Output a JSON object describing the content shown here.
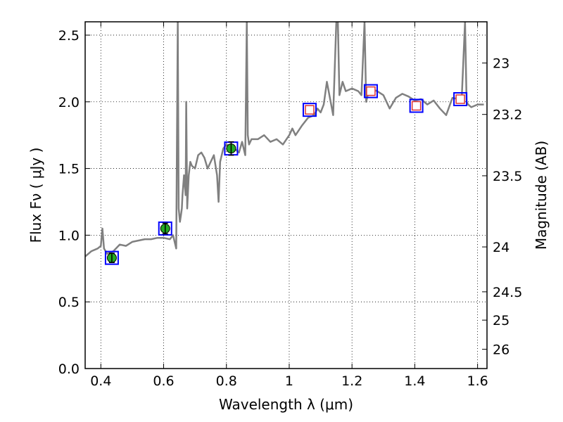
{
  "chart_data": {
    "type": "line",
    "xlabel": "Wavelength  λ (μm)",
    "ylabel": "Flux  Fν  ( μJy )",
    "y2label": "Magnitude (AB)",
    "xlim": [
      0.35,
      1.63
    ],
    "ylim": [
      0.0,
      2.6
    ],
    "grid": true,
    "x_ticks": [
      {
        "value": 0.4,
        "label": "0.4"
      },
      {
        "value": 0.6,
        "label": "0.6"
      },
      {
        "value": 0.8,
        "label": "0.8"
      },
      {
        "value": 1.0,
        "label": "1"
      },
      {
        "value": 1.2,
        "label": "1.2"
      },
      {
        "value": 1.4,
        "label": "1.4"
      },
      {
        "value": 1.6,
        "label": "1.6"
      }
    ],
    "y_ticks": [
      {
        "value": 0.0,
        "label": "0.0"
      },
      {
        "value": 0.5,
        "label": "0.5"
      },
      {
        "value": 1.0,
        "label": "1.0"
      },
      {
        "value": 1.5,
        "label": "1.5"
      },
      {
        "value": 2.0,
        "label": "2.0"
      },
      {
        "value": 2.5,
        "label": "2.5"
      }
    ],
    "y2_ticks": [
      {
        "value": 23.0,
        "label": "23"
      },
      {
        "value": 23.2,
        "label": "23.2"
      },
      {
        "value": 23.5,
        "label": "23.5"
      },
      {
        "value": 24.0,
        "label": "24"
      },
      {
        "value": 24.5,
        "label": "24.5"
      },
      {
        "value": 25.0,
        "label": "25"
      },
      {
        "value": 26.0,
        "label": "26"
      }
    ],
    "series": [
      {
        "color": "#808080",
        "x": [
          0.35,
          0.37,
          0.39,
          0.4,
          0.405,
          0.41,
          0.42,
          0.44,
          0.46,
          0.48,
          0.5,
          0.52,
          0.54,
          0.56,
          0.58,
          0.6,
          0.62,
          0.63,
          0.64,
          0.645,
          0.648,
          0.652,
          0.655,
          0.658,
          0.66,
          0.665,
          0.67,
          0.672,
          0.675,
          0.68,
          0.685,
          0.69,
          0.7,
          0.71,
          0.72,
          0.73,
          0.74,
          0.75,
          0.76,
          0.77,
          0.775,
          0.78,
          0.79,
          0.8,
          0.82,
          0.84,
          0.85,
          0.86,
          0.865,
          0.868,
          0.872,
          0.88,
          0.9,
          0.92,
          0.94,
          0.96,
          0.98,
          1.0,
          1.01,
          1.02,
          1.04,
          1.06,
          1.08,
          1.09,
          1.1,
          1.11,
          1.12,
          1.14,
          1.15,
          1.155,
          1.16,
          1.17,
          1.18,
          1.2,
          1.22,
          1.23,
          1.24,
          1.245,
          1.25,
          1.26,
          1.28,
          1.3,
          1.32,
          1.34,
          1.36,
          1.38,
          1.4,
          1.42,
          1.44,
          1.46,
          1.48,
          1.5,
          1.52,
          1.54,
          1.55,
          1.56,
          1.565,
          1.57,
          1.58,
          1.6,
          1.62
        ],
        "values": [
          0.84,
          0.88,
          0.9,
          0.92,
          1.05,
          0.9,
          0.86,
          0.88,
          0.93,
          0.92,
          0.95,
          0.96,
          0.97,
          0.97,
          0.98,
          0.98,
          0.97,
          1.0,
          0.9,
          2.6,
          1.2,
          1.1,
          1.15,
          1.2,
          1.3,
          1.45,
          1.3,
          2.0,
          1.2,
          1.45,
          1.55,
          1.52,
          1.5,
          1.6,
          1.62,
          1.58,
          1.5,
          1.55,
          1.6,
          1.45,
          1.25,
          1.55,
          1.65,
          1.68,
          1.66,
          1.62,
          1.7,
          1.6,
          2.6,
          1.75,
          1.68,
          1.72,
          1.72,
          1.75,
          1.7,
          1.72,
          1.68,
          1.75,
          1.8,
          1.75,
          1.82,
          1.88,
          1.9,
          1.95,
          1.92,
          1.98,
          2.15,
          1.9,
          2.6,
          2.6,
          2.05,
          2.15,
          2.08,
          2.1,
          2.08,
          2.05,
          2.6,
          2.0,
          2.05,
          2.1,
          2.08,
          2.05,
          1.95,
          2.03,
          2.06,
          2.04,
          2.01,
          2.02,
          1.98,
          2.01,
          1.95,
          1.9,
          2.03,
          2.02,
          2.05,
          2.6,
          2.0,
          1.98,
          1.96,
          1.98,
          1.98
        ]
      }
    ],
    "measured_points": [
      {
        "x": 0.435,
        "y": 0.83,
        "err": 0.035,
        "face": "#22aa22",
        "edge": "#0000ff"
      },
      {
        "x": 0.605,
        "y": 1.05,
        "err": 0.04,
        "face": "#22aa22",
        "edge": "#0000ff"
      },
      {
        "x": 0.815,
        "y": 1.65,
        "err": 0.05,
        "face": "#22aa22",
        "edge": "#0000ff"
      }
    ],
    "model_points": [
      {
        "x": 1.065,
        "y": 1.94,
        "face": "#ffffff",
        "edge": "#dd3333",
        "box": "#0000ff"
      },
      {
        "x": 1.26,
        "y": 2.08,
        "face": "#ffffff",
        "edge": "#dd3333",
        "box": "#0000ff"
      },
      {
        "x": 1.405,
        "y": 1.97,
        "face": "#ffffff",
        "edge": "#dd3333",
        "box": "#0000ff"
      },
      {
        "x": 1.545,
        "y": 2.02,
        "face": "#ffffff",
        "edge": "#dd3333",
        "box": "#0000ff"
      }
    ]
  }
}
